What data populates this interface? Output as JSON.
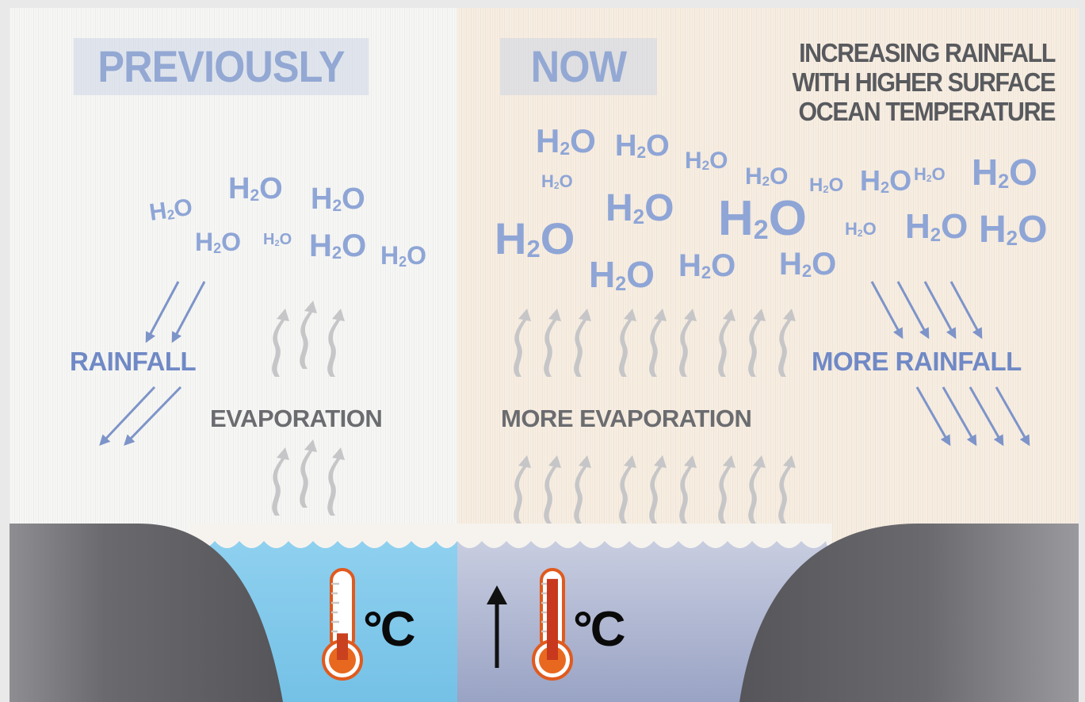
{
  "headline": {
    "lines": [
      "INCREASING RAINFALL",
      "WITH HIGHER SURFACE",
      "OCEAN TEMPERATURE"
    ],
    "text": "INCREASING RAINFALL WITH HIGHER SURFACE OCEAN TEMPERATURE"
  },
  "previously": {
    "title": "PREVIOUSLY",
    "rainfall_label": "RAINFALL",
    "evaporation_label": "EVAPORATION",
    "temperature_unit": "°C",
    "molecule_label": "H2O",
    "molecule_count": 8,
    "thermometer_level": 0.22
  },
  "now": {
    "title": "NOW",
    "rainfall_label": "MORE RAINFALL",
    "evaporation_label": "MORE EVAPORATION",
    "temperature_unit": "°C",
    "molecule_label": "H2O",
    "molecule_count": 20,
    "thermometer_level": 0.92,
    "temperature_trend": "increase"
  },
  "colors": {
    "water_label": "#93a8d3",
    "rainfall_text": "#7089c6",
    "evaporation_text": "#6b6c70",
    "headline_text": "#585a5e",
    "ocean_previously": "#7ec7ea",
    "ocean_now": "#a6aecb",
    "land": "#5c5c60",
    "thermometer_fill": "#e86820",
    "thermometer_hot": "#c8381e"
  },
  "icons": {
    "thermometer": "thermometer-icon",
    "up_arrow": "up-arrow-icon",
    "evaporation_wave": "evaporation-wave-icon",
    "rain_arrow": "rain-arrow-icon"
  }
}
